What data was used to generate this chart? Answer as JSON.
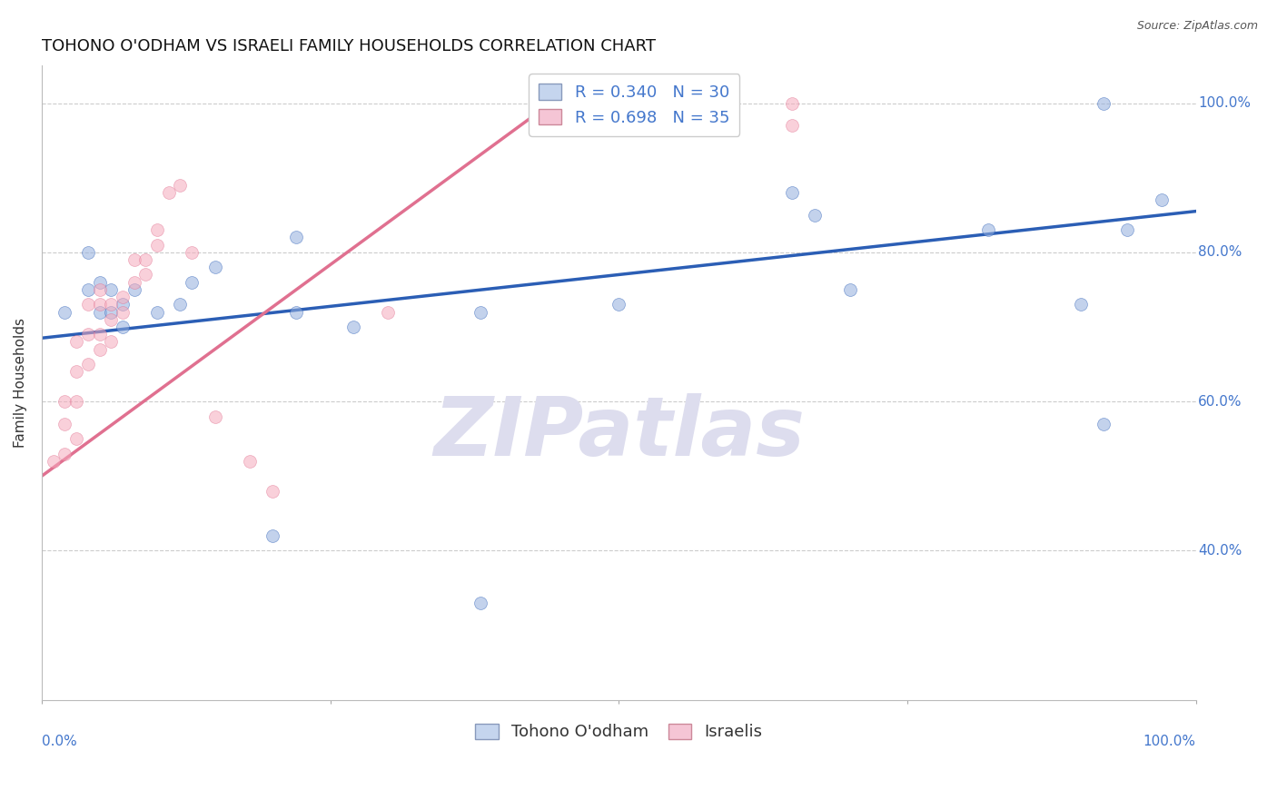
{
  "title": "TOHONO O'ODHAM VS ISRAELI FAMILY HOUSEHOLDS CORRELATION CHART",
  "source": "Source: ZipAtlas.com",
  "ylabel": "Family Households",
  "watermark": "ZIPatlas",
  "xlim": [
    0,
    1.0
  ],
  "ylim": [
    0.2,
    1.05
  ],
  "blue_scatter_x": [
    0.02,
    0.04,
    0.04,
    0.05,
    0.05,
    0.06,
    0.06,
    0.07,
    0.07,
    0.08,
    0.1,
    0.12,
    0.13,
    0.15,
    0.22,
    0.22,
    0.27,
    0.38,
    0.5,
    0.65,
    0.67,
    0.7,
    0.82,
    0.9,
    0.92,
    0.94,
    0.97,
    0.2,
    0.38,
    0.92
  ],
  "blue_scatter_y": [
    0.72,
    0.75,
    0.8,
    0.72,
    0.76,
    0.72,
    0.75,
    0.7,
    0.73,
    0.75,
    0.72,
    0.73,
    0.76,
    0.78,
    0.82,
    0.72,
    0.7,
    0.72,
    0.73,
    0.88,
    0.85,
    0.75,
    0.83,
    0.73,
    1.0,
    0.83,
    0.87,
    0.42,
    0.33,
    0.57
  ],
  "pink_scatter_x": [
    0.01,
    0.02,
    0.02,
    0.02,
    0.03,
    0.03,
    0.03,
    0.03,
    0.04,
    0.04,
    0.04,
    0.05,
    0.05,
    0.05,
    0.05,
    0.06,
    0.06,
    0.06,
    0.07,
    0.07,
    0.08,
    0.08,
    0.09,
    0.09,
    0.1,
    0.1,
    0.11,
    0.12,
    0.13,
    0.15,
    0.18,
    0.2,
    0.3,
    0.65,
    0.65
  ],
  "pink_scatter_y": [
    0.52,
    0.53,
    0.57,
    0.6,
    0.55,
    0.6,
    0.64,
    0.68,
    0.65,
    0.69,
    0.73,
    0.67,
    0.69,
    0.73,
    0.75,
    0.68,
    0.71,
    0.73,
    0.72,
    0.74,
    0.76,
    0.79,
    0.77,
    0.79,
    0.81,
    0.83,
    0.88,
    0.89,
    0.8,
    0.58,
    0.52,
    0.48,
    0.72,
    1.0,
    0.97
  ],
  "blue_R": 0.34,
  "blue_N": 30,
  "pink_R": 0.698,
  "pink_N": 35,
  "blue_line_x": [
    0.0,
    1.0
  ],
  "blue_line_y": [
    0.685,
    0.855
  ],
  "pink_line_x": [
    0.0,
    0.45
  ],
  "pink_line_y": [
    0.5,
    1.01
  ],
  "blue_color": "#92AEDE",
  "pink_color": "#F5AABC",
  "blue_line_color": "#2B5EB5",
  "pink_line_color": "#E07090",
  "legend_box_color_blue": "#C5D5EE",
  "legend_box_color_pink": "#F5C5D5",
  "grid_color": "#CCCCCC",
  "background_color": "#FFFFFF",
  "title_fontsize": 13,
  "axis_label_fontsize": 11,
  "tick_fontsize": 11,
  "legend_fontsize": 13,
  "scatter_size": 100,
  "scatter_alpha": 0.55,
  "watermark_color": "#DDDDEE",
  "watermark_fontsize": 65,
  "yticks": [
    0.4,
    0.6,
    0.8,
    1.0
  ],
  "ytick_labels": [
    "40.0%",
    "60.0%",
    "80.0%",
    "100.0%"
  ],
  "xtick_positions": [
    0.0,
    0.25,
    0.5,
    0.75,
    1.0
  ]
}
